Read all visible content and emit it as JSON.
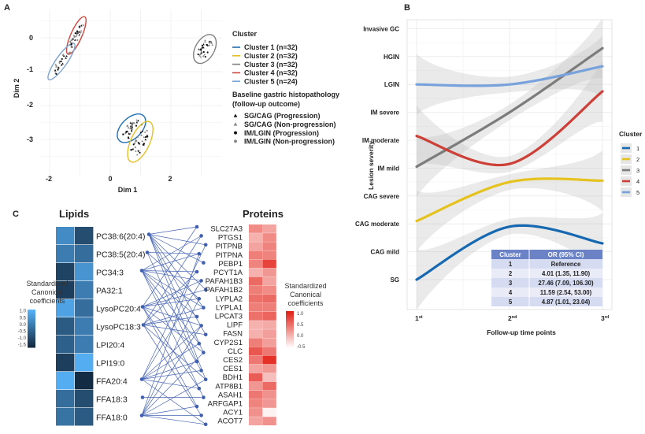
{
  "chart_data": [
    {
      "panel": "A",
      "type": "scatter",
      "xlabel": "Dim 1",
      "ylabel": "Dim 2",
      "xticks": [
        "-2",
        "0",
        "2"
      ],
      "yticks": [
        "0",
        "-1",
        "-2",
        "-3"
      ],
      "xlim": [
        -2.2,
        3.6
      ],
      "ylim": [
        -3.8,
        0.8
      ],
      "grid": true,
      "legend_position": "right",
      "cluster_legend_title": "Cluster",
      "clusters": [
        {
          "name": "Cluster 1 (n=32)",
          "color": "#1f6fb4",
          "n": 32,
          "center": [
            0.7,
            -2.67
          ]
        },
        {
          "name": "Cluster 2 (n=32)",
          "color": "#e3bf22",
          "n": 32,
          "center": [
            0.99,
            -3.07
          ]
        },
        {
          "name": "Cluster 3 (n=32)",
          "color": "#808080",
          "n": 32,
          "center": [
            3.12,
            -0.33
          ]
        },
        {
          "name": "Cluster 4 (n=32)",
          "color": "#c9463d",
          "n": 32,
          "center": [
            -1.12,
            0.07
          ]
        },
        {
          "name": "Cluster 5 (n=24)",
          "color": "#7aa3d6",
          "n": 24,
          "center": [
            -1.61,
            -0.7
          ]
        }
      ],
      "shape_legend_title": [
        "Baseline gastric histopathology",
        "(follow-up outcome)"
      ],
      "shape_legend": [
        {
          "label": "SG/CAG (Progression)",
          "shape": "triangle",
          "color": "#111111"
        },
        {
          "label": "SG/CAG (Non-progression)",
          "shape": "triangle",
          "color": "#8a8a8a"
        },
        {
          "label": "IM/LGIN (Progression)",
          "shape": "circle",
          "color": "#111111"
        },
        {
          "label": "IM/LGIN (Non-progression)",
          "shape": "circle",
          "color": "#8a8a8a"
        }
      ]
    },
    {
      "panel": "B",
      "type": "line",
      "xlabel": "Follow-up time points",
      "ylabel": "Lesion severity",
      "x": [
        {
          "n": "1",
          "sup": "st"
        },
        {
          "n": "2",
          "sup": "nd"
        },
        {
          "n": "3",
          "sup": "rd"
        }
      ],
      "y_categories": [
        "SG",
        "CAG mild",
        "CAG moderate",
        "CAG severe",
        "IM mild",
        "IM moderate",
        "IM severe",
        "LGIN",
        "HGIN",
        "Invasive GC"
      ],
      "confidence_bands": true,
      "legend_title": "Cluster",
      "legend_position": "right",
      "series": [
        {
          "name": "1",
          "color": "#1668b0",
          "values": [
            1.0,
            2.9,
            2.3
          ]
        },
        {
          "name": "2",
          "color": "#e6c21f",
          "values": [
            3.1,
            4.5,
            4.55
          ]
        },
        {
          "name": "3",
          "color": "#7c7c7c",
          "values": [
            5.05,
            7.0,
            9.3
          ]
        },
        {
          "name": "4",
          "color": "#cc4038",
          "values": [
            6.15,
            5.15,
            7.75
          ]
        },
        {
          "name": "5",
          "color": "#77a2dc",
          "values": [
            8.0,
            8.0,
            8.65
          ]
        }
      ],
      "table": {
        "headers": [
          "Cluster",
          "OR (95% CI)"
        ],
        "rows": [
          [
            "1",
            "Reference"
          ],
          [
            "2",
            "4.01 (1.35, 11.90)"
          ],
          [
            "3",
            "27.46 (7.09, 106.30)"
          ],
          [
            "4",
            "11.59 (2.54, 53.00)"
          ],
          [
            "5",
            "4.87 (1.01, 23.04)"
          ]
        ]
      }
    },
    {
      "panel": "C",
      "type": "heatmap",
      "lipids_title": "Lipids",
      "proteins_title": "Proteins",
      "lipids": [
        "PC38:6(20:4)",
        "PC38:5(20:4)",
        "PC34:3",
        "PA32:1",
        "LysoPC20:4",
        "LysoPC18:3",
        "LPI20:4",
        "LPI19:0",
        "FFA20:4",
        "FFA18:3",
        "FFA18:0"
      ],
      "lipid_values": [
        [
          0.3,
          -1.0
        ],
        [
          0.0,
          -0.3
        ],
        [
          -1.2,
          0.5
        ],
        [
          -1.3,
          0.0
        ],
        [
          0.8,
          -0.3
        ],
        [
          -0.7,
          0.0
        ],
        [
          -0.6,
          0.0
        ],
        [
          -1.3,
          1.0
        ],
        [
          1.0,
          -1.7
        ],
        [
          -0.3,
          -1.0
        ],
        [
          -0.2,
          -0.7
        ]
      ],
      "lipid_legend": {
        "title": [
          "Standardized",
          "Canonical",
          "coefficients"
        ],
        "ticks": [
          "1.0",
          "0.5",
          "0.0",
          "-0.5",
          "-1.0",
          "-1.5"
        ],
        "range": [
          -1.7,
          1.1
        ]
      },
      "proteins": [
        "SLC27A3",
        "PTGS1",
        "PITPNB",
        "PITPNA",
        "PEBP1",
        "PCYT1A",
        "PAFAH1B3",
        "PAFAH1B2",
        "LYPLA2",
        "LYPLA1",
        "LPCAT3",
        "LIPF",
        "FASN",
        "CYP2S1",
        "CLC",
        "CES2",
        "CES1",
        "BDH1",
        "ATP8B1",
        "ASAH1",
        "ARFGAP1",
        "ACY1",
        "ACOT7"
      ],
      "protein_values": [
        [
          0.3,
          0.1
        ],
        [
          0.0,
          0.3
        ],
        [
          0.1,
          0.35
        ],
        [
          0.4,
          0.35
        ],
        [
          0.35,
          0.85
        ],
        [
          0.0,
          0.2
        ],
        [
          0.55,
          0.1
        ],
        [
          0.4,
          0.3
        ],
        [
          0.5,
          0.55
        ],
        [
          0.4,
          0.4
        ],
        [
          0.5,
          0.6
        ],
        [
          0.0,
          0.05
        ],
        [
          0.0,
          0.15
        ],
        [
          0.4,
          0.15
        ],
        [
          0.7,
          0.45
        ],
        [
          0.45,
          1.0
        ],
        [
          0.1,
          0.2
        ],
        [
          0.65,
          -0.1
        ],
        [
          0.2,
          0.55
        ],
        [
          0.45,
          0.25
        ],
        [
          0.35,
          0.2
        ],
        [
          0.25,
          -0.5
        ],
        [
          0.1,
          0.25
        ]
      ],
      "protein_legend": {
        "title": [
          "Standardized",
          "Canonical",
          "coefficients"
        ],
        "ticks": [
          "1.0",
          "0.5",
          "0.0",
          "-0.5"
        ],
        "range": [
          -0.6,
          1.1
        ]
      },
      "links": [
        [
          0,
          0
        ],
        [
          0,
          2
        ],
        [
          0,
          4
        ],
        [
          0,
          7
        ],
        [
          0,
          9
        ],
        [
          0,
          12
        ],
        [
          0,
          14
        ],
        [
          0,
          17
        ],
        [
          1,
          3
        ],
        [
          1,
          8
        ],
        [
          1,
          15
        ],
        [
          2,
          1
        ],
        [
          2,
          3
        ],
        [
          2,
          5
        ],
        [
          2,
          6
        ],
        [
          2,
          9
        ],
        [
          2,
          10
        ],
        [
          2,
          13
        ],
        [
          2,
          16
        ],
        [
          2,
          19
        ],
        [
          4,
          0
        ],
        [
          4,
          6
        ],
        [
          4,
          7
        ],
        [
          4,
          8
        ],
        [
          4,
          11
        ],
        [
          4,
          14
        ],
        [
          4,
          18
        ],
        [
          4,
          20
        ],
        [
          5,
          1
        ],
        [
          5,
          5
        ],
        [
          5,
          9
        ],
        [
          5,
          10
        ],
        [
          5,
          12
        ],
        [
          5,
          17
        ],
        [
          5,
          21
        ],
        [
          8,
          2
        ],
        [
          8,
          6
        ],
        [
          8,
          11
        ],
        [
          8,
          13
        ],
        [
          8,
          15
        ],
        [
          8,
          16
        ],
        [
          8,
          18
        ],
        [
          8,
          22
        ],
        [
          9,
          19
        ],
        [
          10,
          3
        ],
        [
          10,
          8
        ],
        [
          10,
          11
        ],
        [
          10,
          14
        ],
        [
          10,
          17
        ],
        [
          10,
          20
        ],
        [
          10,
          21
        ],
        [
          10,
          22
        ]
      ]
    }
  ],
  "panel_labels": [
    "A",
    "B",
    "C"
  ]
}
